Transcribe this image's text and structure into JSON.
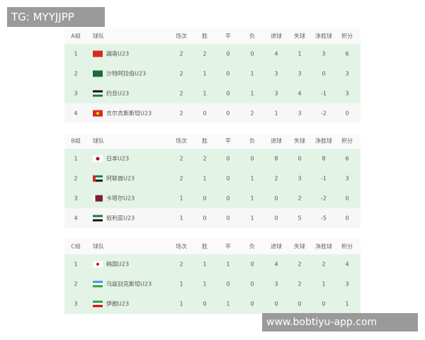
{
  "watermark_top": "TG: MYYJJPP",
  "watermark_bottom": "www.bobtiyu-app.com",
  "columns": [
    "球队",
    "场次",
    "胜",
    "平",
    "负",
    "进球",
    "失球",
    "净胜球",
    "积分"
  ],
  "groups": [
    {
      "name": "A组",
      "rows": [
        {
          "rank": "1",
          "flag": "vietnam-flag-icon",
          "team": "越南U23",
          "p": "2",
          "w": "2",
          "d": "0",
          "l": "0",
          "gf": "4",
          "ga": "1",
          "gd": "3",
          "pts": "6"
        },
        {
          "rank": "2",
          "flag": "saudi-arabia-flag-icon",
          "team": "沙特阿拉伯U23",
          "p": "2",
          "w": "1",
          "d": "0",
          "l": "1",
          "gf": "3",
          "ga": "3",
          "gd": "0",
          "pts": "3"
        },
        {
          "rank": "3",
          "flag": "jordan-flag-icon",
          "team": "约旦U23",
          "p": "2",
          "w": "1",
          "d": "0",
          "l": "1",
          "gf": "3",
          "ga": "4",
          "gd": "-1",
          "pts": "3"
        },
        {
          "rank": "4",
          "flag": "kyrgyzstan-flag-icon",
          "team": "吉尔吉斯斯坦U23",
          "p": "2",
          "w": "0",
          "d": "0",
          "l": "2",
          "gf": "1",
          "ga": "3",
          "gd": "-2",
          "pts": "0"
        }
      ]
    },
    {
      "name": "B组",
      "rows": [
        {
          "rank": "1",
          "flag": "japan-flag-icon",
          "team": "日本U23",
          "p": "2",
          "w": "2",
          "d": "0",
          "l": "0",
          "gf": "8",
          "ga": "0",
          "gd": "8",
          "pts": "6"
        },
        {
          "rank": "2",
          "flag": "uae-flag-icon",
          "team": "阿联酋U23",
          "p": "2",
          "w": "1",
          "d": "0",
          "l": "1",
          "gf": "2",
          "ga": "3",
          "gd": "-1",
          "pts": "3"
        },
        {
          "rank": "3",
          "flag": "qatar-flag-icon",
          "team": "卡塔尔U23",
          "p": "1",
          "w": "0",
          "d": "0",
          "l": "1",
          "gf": "0",
          "ga": "2",
          "gd": "-2",
          "pts": "0"
        },
        {
          "rank": "4",
          "flag": "syria-flag-icon",
          "team": "叙利亚U23",
          "p": "1",
          "w": "0",
          "d": "0",
          "l": "1",
          "gf": "0",
          "ga": "5",
          "gd": "-5",
          "pts": "0"
        }
      ]
    },
    {
      "name": "C组",
      "rows": [
        {
          "rank": "1",
          "flag": "korea-flag-icon",
          "team": "韩国U23",
          "p": "2",
          "w": "1",
          "d": "1",
          "l": "0",
          "gf": "4",
          "ga": "2",
          "gd": "2",
          "pts": "4"
        },
        {
          "rank": "2",
          "flag": "uzbekistan-flag-icon",
          "team": "乌兹别克斯坦U23",
          "p": "1",
          "w": "1",
          "d": "0",
          "l": "0",
          "gf": "3",
          "ga": "2",
          "gd": "1",
          "pts": "3"
        },
        {
          "rank": "3",
          "flag": "iran-flag-icon",
          "team": "伊朗U23",
          "p": "1",
          "w": "0",
          "d": "1",
          "l": "0",
          "gf": "0",
          "ga": "0",
          "gd": "0",
          "pts": "1"
        }
      ]
    }
  ]
}
